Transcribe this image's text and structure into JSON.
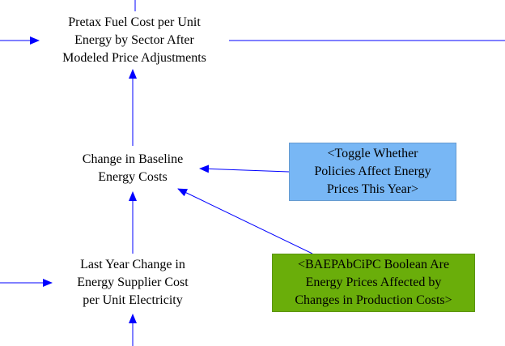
{
  "colors": {
    "arrow": "#0000ff",
    "shadow_box_blue": "#78b7f5",
    "shadow_box_green": "#6aae0a",
    "text": "#000000"
  },
  "nodes": {
    "pretax": {
      "lines": [
        "Pretax Fuel Cost per Unit",
        "Energy by Sector After",
        "Modeled Price Adjustments"
      ]
    },
    "change": {
      "lines": [
        "Change in Baseline",
        "Energy Costs"
      ]
    },
    "lastyear": {
      "lines": [
        "Last Year Change in",
        "Energy Supplier Cost",
        "per Unit Electricity"
      ]
    },
    "toggle": {
      "lines": [
        "<Toggle Whether",
        "Policies Affect Energy",
        "Prices This Year>"
      ]
    },
    "baepab": {
      "lines": [
        "<BAEPAbCiPC Boolean Are",
        "Energy Prices Affected by",
        "Changes in Production Costs>"
      ]
    }
  }
}
